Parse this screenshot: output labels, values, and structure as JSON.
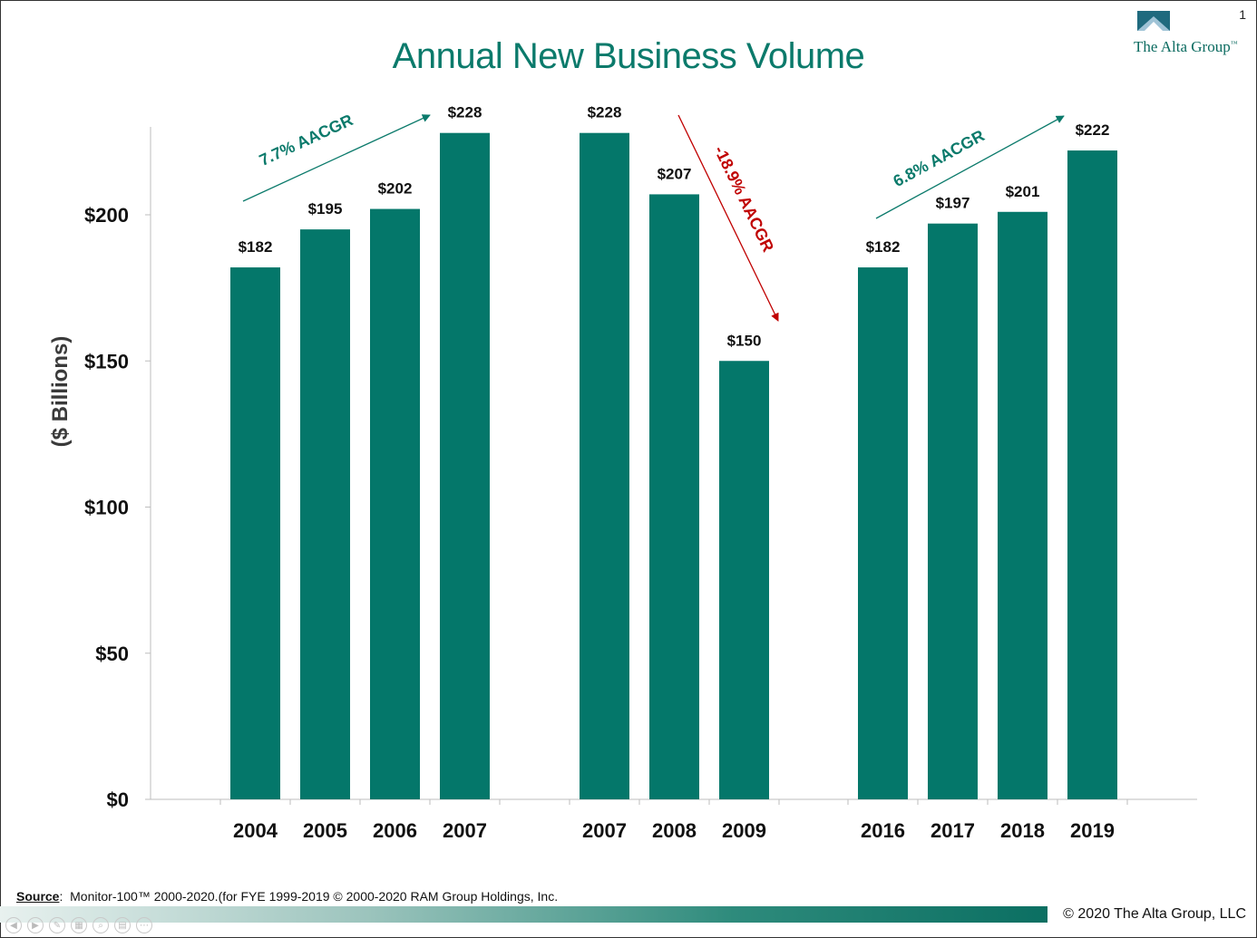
{
  "page_number": "1",
  "title": "Annual New Business Volume",
  "logo": {
    "text": "The Alta Group",
    "tm": "™",
    "mark_color": "#1f6a7e",
    "icon": "mountain-triangle-icon"
  },
  "colors": {
    "bar": "#04776a",
    "accent": "#0b7a6b",
    "decline": "#c00000"
  },
  "chart_data": {
    "type": "bar",
    "ylabel": "($ Billions)",
    "xlabel": "",
    "ylim": [
      0,
      230
    ],
    "yticks": [
      0,
      50,
      100,
      150,
      200
    ],
    "ytick_labels": [
      "$0",
      "$50",
      "$100",
      "$150",
      "$200"
    ],
    "grid": false,
    "groups": [
      {
        "categories": [
          "2004",
          "2005",
          "2006",
          "2007"
        ],
        "values": [
          182,
          195,
          202,
          228
        ],
        "data_labels": [
          "$182",
          "$195",
          "$202",
          "$228"
        ]
      },
      {
        "categories": [
          "2007",
          "2008",
          "2009"
        ],
        "values": [
          228,
          207,
          150
        ],
        "data_labels": [
          "$228",
          "$207",
          "$150"
        ]
      },
      {
        "categories": [
          "2016",
          "2017",
          "2018",
          "2019"
        ],
        "values": [
          182,
          197,
          201,
          222
        ],
        "data_labels": [
          "$182",
          "$197",
          "$201",
          "$222"
        ]
      }
    ],
    "annotations": [
      {
        "text": "7.7% AACGR",
        "direction": "up"
      },
      {
        "text": "-18.9% AACGR",
        "direction": "down"
      },
      {
        "text": "6.8% AACGR",
        "direction": "up"
      }
    ]
  },
  "source": {
    "label": "Source",
    "text": "Monitor-100™ 2000-2020.(for FYE 1999-2019   © 2000-2020 RAM Group Holdings, Inc."
  },
  "copyright": "© 2020 The Alta Group, LLC",
  "controls": [
    "◀",
    "▶",
    "✎",
    "▦",
    "⌕",
    "▤",
    "⋯"
  ]
}
